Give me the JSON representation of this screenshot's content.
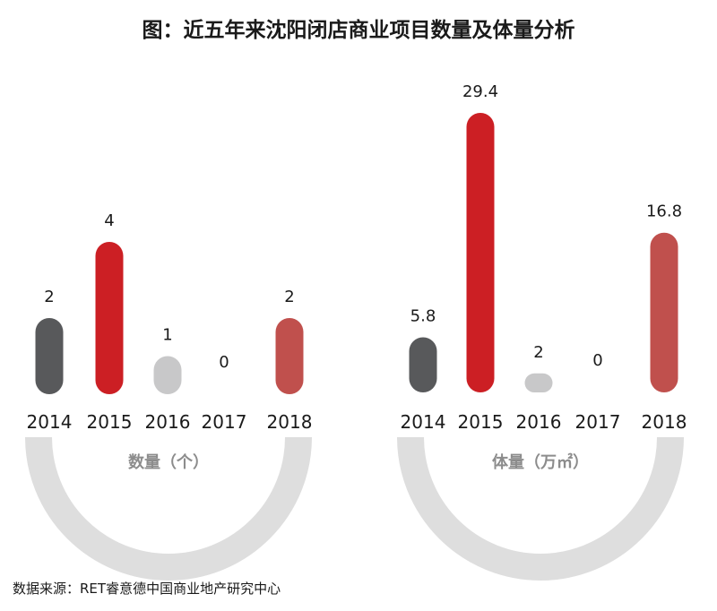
{
  "title": "图：近五年来沈阳闭店商业项目数量及体量分析",
  "source": "数据来源：RET睿意德中国商业地产研究中心",
  "colors": {
    "dark_gray": "#58595b",
    "red": "#cc1f24",
    "light_gray": "#c8c8c9",
    "muted_red": "#c0504d",
    "arc": "#dedede",
    "arc_label": "#8c8c8c",
    "text": "#1a1a1a"
  },
  "chart_data": [
    {
      "type": "bar",
      "title": "数量（个）",
      "categories": [
        "2014",
        "2015",
        "2016",
        "2017",
        "2018"
      ],
      "values": [
        2,
        4,
        1,
        0,
        2
      ],
      "value_labels": [
        "2",
        "4",
        "1",
        "0",
        "2"
      ],
      "bar_colors": [
        "#58595b",
        "#cc1f24",
        "#c8c8c9",
        "#c8c8c9",
        "#c0504d"
      ],
      "ylim": [
        0,
        4
      ],
      "grid": false
    },
    {
      "type": "bar",
      "title": "体量（万㎡）",
      "categories": [
        "2014",
        "2015",
        "2016",
        "2017",
        "2018"
      ],
      "values": [
        5.8,
        29.4,
        2,
        0,
        16.8
      ],
      "value_labels": [
        "5.8",
        "29.4",
        "2",
        "0",
        "16.8"
      ],
      "bar_colors": [
        "#58595b",
        "#cc1f24",
        "#c8c8c9",
        "#c8c8c9",
        "#c0504d"
      ],
      "ylim": [
        0,
        29.4
      ],
      "grid": false
    }
  ]
}
